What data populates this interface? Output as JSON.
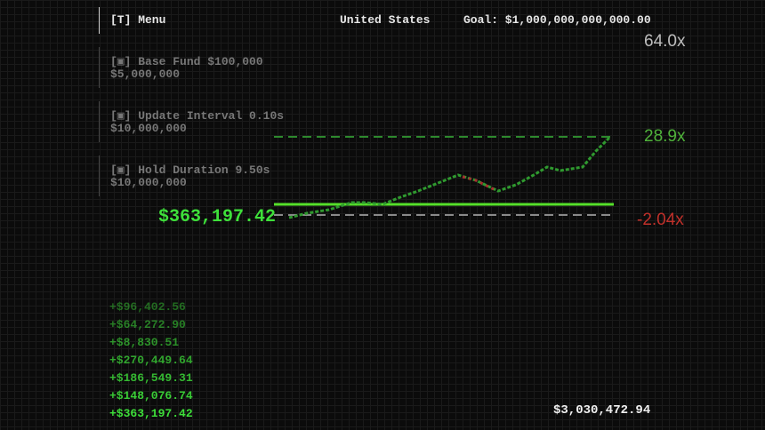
{
  "header": {
    "menu": "[T] Menu",
    "country": "United States",
    "goal": "Goal: $1,000,000,000,000.00"
  },
  "upgrades": [
    {
      "label": "[▣] Base Fund $100,000",
      "cost": "$5,000,000"
    },
    {
      "label": "[▣] Update Interval 0.10s",
      "cost": "$10,000,000"
    },
    {
      "label": "[▣] Hold Duration 9.50s",
      "cost": "$10,000,000"
    }
  ],
  "multipliers": {
    "max": "64.0x",
    "take_profit": "28.9x",
    "stop_loss": "-2.04x"
  },
  "current_value": "$363,197.42",
  "history": [
    "+$96,402.56",
    "+$64,272.90",
    "+$8,830.51",
    "+$270,449.64",
    "+$186,549.31",
    "+$148,076.74",
    "+$363,197.42"
  ],
  "total": "$3,030,472.94"
}
